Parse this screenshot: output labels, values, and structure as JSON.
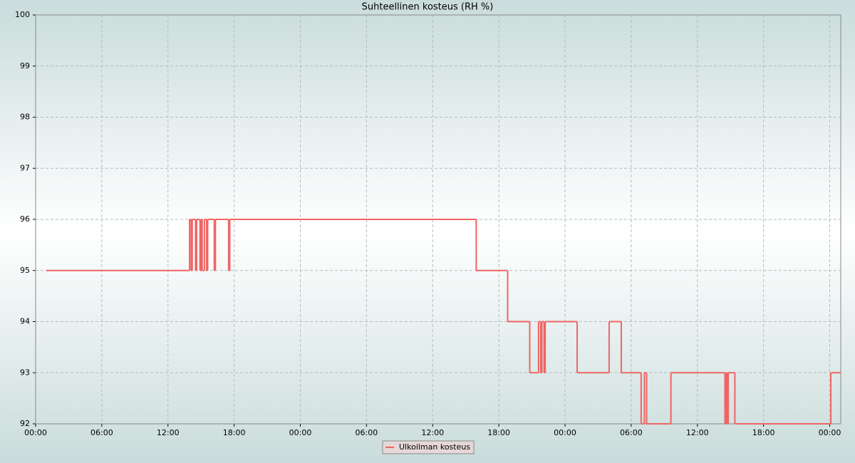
{
  "chart_data": {
    "type": "line",
    "step": true,
    "title": "Suhteellinen kosteus (RH %)",
    "x": [
      0.97,
      13.96,
      14.1,
      14.2,
      14.5,
      14.6,
      14.9,
      15.0,
      15.1,
      15.3,
      15.5,
      15.6,
      16.2,
      16.3,
      17.5,
      17.6,
      39.95,
      42.8,
      44.8,
      45.6,
      45.8,
      45.9,
      46.1,
      46.2,
      49.1,
      52.0,
      53.1,
      54.9,
      55.2,
      55.4,
      57.6,
      62.5,
      62.6,
      62.7,
      62.8,
      63.4,
      72.1,
      73.0
    ],
    "series": [
      {
        "name": "Ulkoilman kosteus",
        "color": "#f06464",
        "values": [
          95,
          96,
          95,
          96,
          95,
          96,
          95,
          96,
          95,
          96,
          95,
          96,
          95,
          96,
          95,
          96,
          95,
          94,
          93,
          94,
          93,
          94,
          93,
          94,
          93,
          94,
          93,
          92,
          93,
          92,
          93,
          92,
          93,
          92,
          93,
          92,
          93,
          93
        ]
      }
    ],
    "xlim": [
      0,
      73
    ],
    "ylim": [
      92,
      100
    ],
    "xticks": [
      {
        "value": 0,
        "label": "00:00"
      },
      {
        "value": 6,
        "label": "06:00"
      },
      {
        "value": 12,
        "label": "12:00"
      },
      {
        "value": 18,
        "label": "18:00"
      },
      {
        "value": 24,
        "label": "00:00"
      },
      {
        "value": 30,
        "label": "06:00"
      },
      {
        "value": 36,
        "label": "12:00"
      },
      {
        "value": 42,
        "label": "18:00"
      },
      {
        "value": 48,
        "label": "00:00"
      },
      {
        "value": 54,
        "label": "06:00"
      },
      {
        "value": 60,
        "label": "12:00"
      },
      {
        "value": 66,
        "label": "18:00"
      },
      {
        "value": 72,
        "label": "00:00"
      }
    ],
    "yticks": [
      92,
      93,
      94,
      95,
      96,
      97,
      98,
      99,
      100
    ],
    "grid": true,
    "legend": "bottom"
  }
}
